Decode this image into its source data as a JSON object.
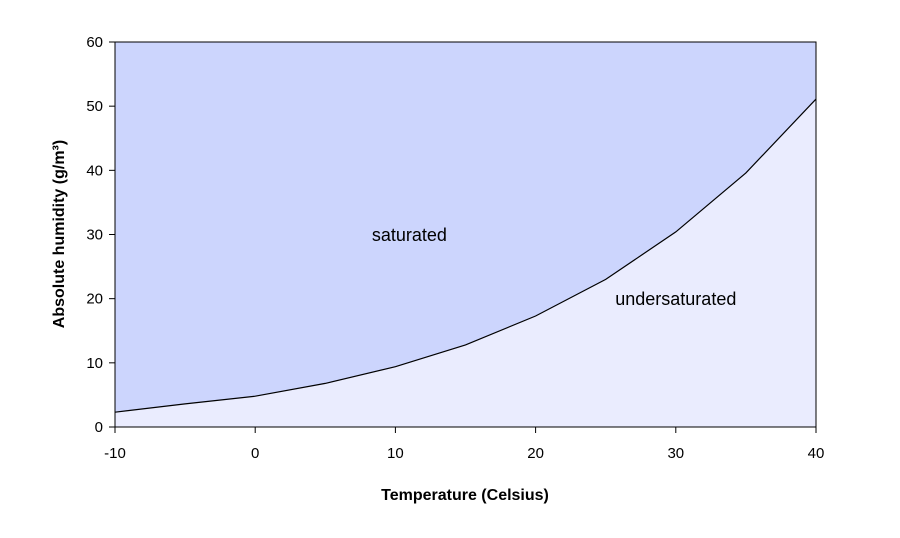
{
  "chart_data": {
    "type": "area",
    "title": "",
    "xlabel": "Temperature (Celsius)",
    "ylabel": "Absolute  humidity (g/m³)",
    "xlim": [
      -10,
      40
    ],
    "ylim": [
      0,
      60
    ],
    "x_ticks": [
      "-10",
      "0",
      "10",
      "20",
      "30",
      "40"
    ],
    "y_ticks": [
      "0",
      "10",
      "20",
      "30",
      "40",
      "50",
      "60"
    ],
    "series": [
      {
        "x": [
          -10,
          -5,
          0,
          5,
          10,
          15,
          20,
          25,
          30,
          35,
          40
        ],
        "values": [
          2.3,
          3.6,
          4.8,
          6.8,
          9.4,
          12.8,
          17.3,
          23.0,
          30.4,
          39.6,
          51.1
        ]
      }
    ],
    "region_labels": [
      {
        "text": "saturated",
        "x": 11,
        "y": 29
      },
      {
        "text": "undersaturated",
        "x": 30,
        "y": 19
      }
    ],
    "colors": {
      "saturated_fill": "#ccd5fd",
      "undersaturated_fill": "#eaecfe",
      "curve": "#000000",
      "axis": "#000000"
    },
    "grid": false,
    "legend": "none"
  }
}
